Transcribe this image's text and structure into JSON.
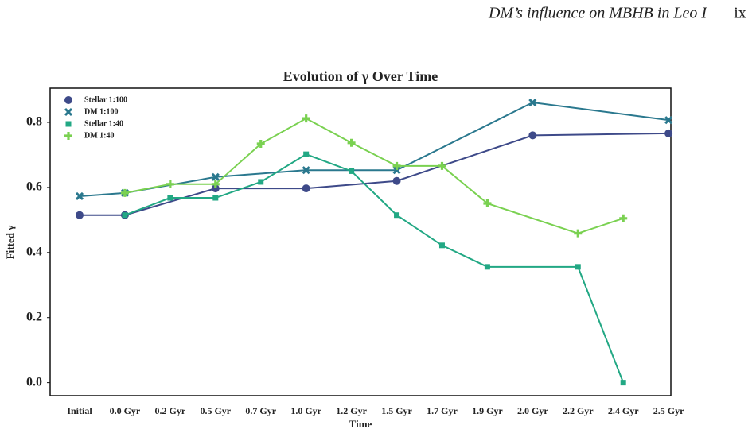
{
  "header": {
    "running_title": "DM’s influence on MBHB in Leo I",
    "page_number": "ix"
  },
  "chart_data": {
    "type": "line",
    "title": "Evolution of γ Over Time",
    "x_label": "Time",
    "y_label": "Fitted γ",
    "categories": [
      "Initial",
      "0.0 Gyr",
      "0.2 Gyr",
      "0.5 Gyr",
      "0.7 Gyr",
      "1.0 Gyr",
      "1.2 Gyr",
      "1.5 Gyr",
      "1.7 Gyr",
      "1.9 Gyr",
      "2.0 Gyr",
      "2.2 Gyr",
      "2.4 Gyr",
      "2.5 Gyr"
    ],
    "ylim": [
      -0.04,
      0.905
    ],
    "yticks": [
      {
        "value": 0,
        "label": "0.0"
      },
      0.2,
      0.4,
      0.6,
      0.8
    ],
    "grid": false,
    "legend": "upper-left",
    "series": [
      {
        "name": "Stellar 1:100",
        "color": "#3e4a89",
        "marker": "circle",
        "x": [
          "Initial",
          "0.0 Gyr",
          "0.5 Gyr",
          "1.0 Gyr",
          "1.5 Gyr",
          "2.0 Gyr",
          "2.5 Gyr"
        ],
        "values": [
          0.515,
          0.515,
          0.597,
          0.597,
          0.62,
          0.76,
          0.766
        ]
      },
      {
        "name": "DM 1:100",
        "color": "#2a788e",
        "marker": "x",
        "x": [
          "Initial",
          "0.0 Gyr",
          "0.5 Gyr",
          "1.0 Gyr",
          "1.5 Gyr",
          "2.0 Gyr",
          "2.5 Gyr"
        ],
        "values": [
          0.573,
          0.583,
          0.632,
          0.653,
          0.653,
          0.861,
          0.807
        ]
      },
      {
        "name": "Stellar 1:40",
        "color": "#22a884",
        "marker": "square",
        "x": [
          "0.0 Gyr",
          "0.2 Gyr",
          "0.5 Gyr",
          "0.7 Gyr",
          "1.0 Gyr",
          "1.2 Gyr",
          "1.5 Gyr",
          "1.7 Gyr",
          "1.9 Gyr",
          "2.2 Gyr",
          "2.4 Gyr"
        ],
        "values": [
          0.515,
          0.568,
          0.568,
          0.617,
          0.702,
          0.65,
          0.515,
          0.422,
          0.356,
          0.356,
          0.0
        ]
      },
      {
        "name": "DM 1:40",
        "color": "#7ad151",
        "marker": "plus",
        "x": [
          "0.0 Gyr",
          "0.2 Gyr",
          "0.5 Gyr",
          "0.7 Gyr",
          "1.0 Gyr",
          "1.2 Gyr",
          "1.5 Gyr",
          "1.7 Gyr",
          "1.9 Gyr",
          "2.2 Gyr",
          "2.4 Gyr"
        ],
        "values": [
          0.583,
          0.61,
          0.61,
          0.734,
          0.812,
          0.737,
          0.666,
          0.666,
          0.551,
          0.459,
          0.505
        ]
      }
    ]
  }
}
